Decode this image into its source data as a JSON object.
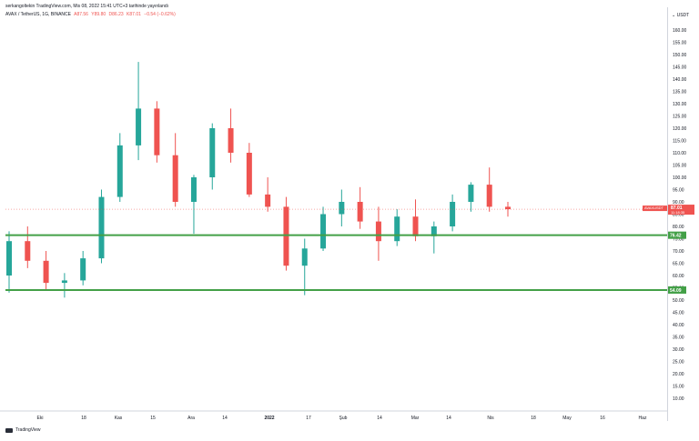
{
  "header": {
    "publisher_line": "serkangoltekin TradingView.com, Mis 08, 2022 15:41 UTC+3 tarihinde yayınlandı",
    "symbol_line": "AVAX / TetherUS, 1G, BINANCE",
    "open": "A87.56",
    "high": "Y89.80",
    "low": "D86.23",
    "close": "K87.01",
    "change": "−0.54 (−0.62%)"
  },
  "price_scale": {
    "unit": "USDT",
    "ticks": [
      "160.00",
      "155.00",
      "150.00",
      "145.00",
      "140.00",
      "135.00",
      "130.00",
      "125.00",
      "120.00",
      "115.00",
      "110.00",
      "105.00",
      "100.00",
      "95.00",
      "90.00",
      "85.00",
      "80.00",
      "75.00",
      "70.00",
      "65.00",
      "60.00",
      "55.00",
      "50.00",
      "45.00",
      "40.00",
      "35.00",
      "30.00",
      "25.00",
      "20.00",
      "15.00",
      "10.00"
    ]
  },
  "time_axis": {
    "ticks": [
      "Eki",
      "18",
      "Kas",
      "15",
      "Ara",
      "14",
      "2022",
      "17",
      "Şub",
      "14",
      "Mar",
      "14",
      "Nis",
      "18",
      "May",
      "16",
      "Haz"
    ]
  },
  "price_label": {
    "symbol": "AVAXUSDT",
    "value": "87.01",
    "countdown": "11:18:35",
    "color": "#ef5350"
  },
  "levels": [
    {
      "label": "76.42",
      "color": "#43a047"
    },
    {
      "label": "54.09",
      "color": "#43a047"
    }
  ],
  "footer": {
    "brand": "TradingView"
  },
  "colors": {
    "up": "#26a69a",
    "down": "#ef5350",
    "support": "#43a047"
  },
  "chart_data": {
    "type": "candlestick",
    "title": "AVAX / TetherUS, 1G, BINANCE",
    "ylabel": "USDT",
    "ylim": [
      10,
      160
    ],
    "grid": false,
    "last_price": 87.01,
    "horizontal_levels": [
      76.42,
      54.09
    ],
    "x": [
      "2021-10-01",
      "2021-10-08",
      "2021-10-15",
      "2021-10-22",
      "2021-10-29",
      "2021-11-05",
      "2021-11-12",
      "2021-11-19",
      "2021-11-26",
      "2021-12-03",
      "2021-12-10",
      "2021-12-17",
      "2021-12-24",
      "2021-12-31",
      "2022-01-07",
      "2022-01-14",
      "2022-01-21",
      "2022-01-28",
      "2022-02-04",
      "2022-02-11",
      "2022-02-18",
      "2022-02-25",
      "2022-03-04",
      "2022-03-11",
      "2022-03-18",
      "2022-03-25",
      "2022-04-01",
      "2022-04-08"
    ],
    "series": [
      {
        "open": [
          60,
          74,
          66,
          57,
          58,
          67,
          92,
          113,
          128,
          109,
          90,
          100,
          120,
          110,
          93,
          88,
          64,
          71,
          85,
          90,
          82,
          74,
          84,
          76,
          80,
          90,
          97,
          88
        ],
        "high": [
          78,
          80,
          70,
          61,
          70,
          95,
          118,
          147,
          131,
          118,
          101,
          122,
          128,
          114,
          100,
          92,
          75,
          88,
          95,
          96,
          88,
          87,
          91,
          82,
          93,
          98,
          104,
          90
        ],
        "low": [
          53,
          63,
          54,
          51,
          56,
          65,
          90,
          107,
          106,
          88,
          77,
          95,
          106,
          92,
          86,
          62,
          52,
          70,
          80,
          79,
          66,
          72,
          74,
          69,
          78,
          86,
          86,
          84
        ],
        "close": [
          74,
          66,
          57,
          58,
          67,
          92,
          113,
          128,
          109,
          90,
          100,
          120,
          110,
          93,
          88,
          64,
          71,
          85,
          90,
          82,
          74,
          84,
          76,
          80,
          90,
          97,
          88,
          87
        ]
      }
    ]
  }
}
